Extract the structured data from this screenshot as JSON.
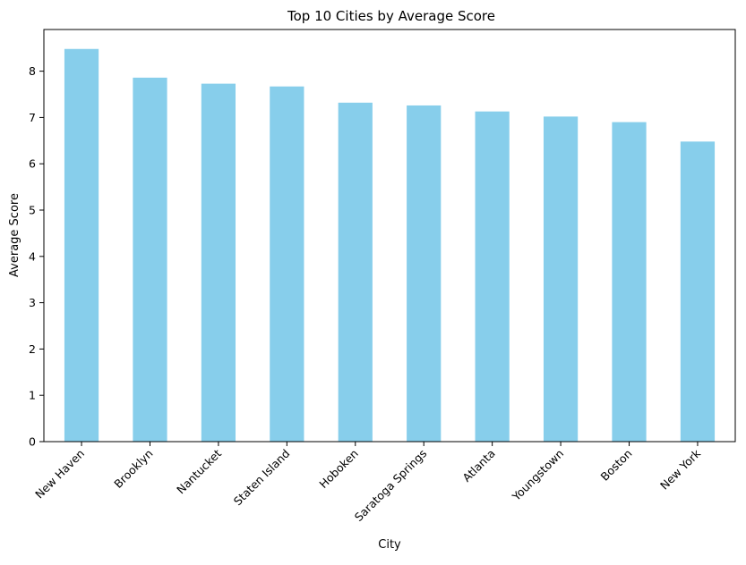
{
  "chart_data": {
    "type": "bar",
    "title": "Top 10 Cities by Average Score",
    "xlabel": "City",
    "ylabel": "Average Score",
    "categories": [
      "New Haven",
      "Brooklyn",
      "Nantucket",
      "Staten Island",
      "Hoboken",
      "Saratoga Springs",
      "Atlanta",
      "Youngstown",
      "Boston",
      "New York"
    ],
    "values": [
      8.48,
      7.86,
      7.73,
      7.67,
      7.32,
      7.26,
      7.13,
      7.02,
      6.9,
      6.48
    ],
    "ylim": [
      0,
      8.9
    ],
    "yticks": [
      0,
      1,
      2,
      3,
      4,
      5,
      6,
      7,
      8
    ],
    "grid": false,
    "legend": "none",
    "bar_color": "#87CEEB"
  }
}
